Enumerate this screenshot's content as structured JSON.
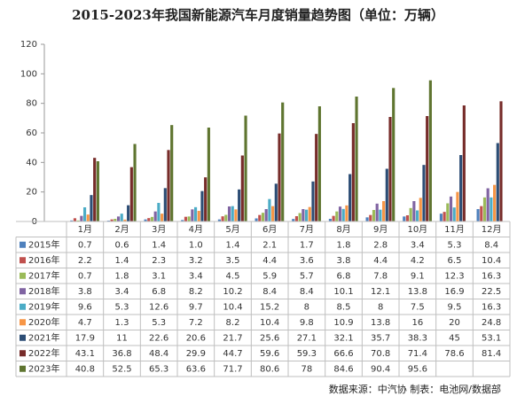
{
  "chart_data": {
    "type": "bar",
    "title": "2015-2023年我国新能源汽车月度销量趋势图（单位：万辆）",
    "source": "数据来源：中汽协  制表：电池网/数据部",
    "categories": [
      "1月",
      "2月",
      "3月",
      "4月",
      "5月",
      "6月",
      "7月",
      "8月",
      "9月",
      "10月",
      "11月",
      "12月"
    ],
    "ylim": [
      0,
      120
    ],
    "yticks": [
      0,
      20,
      40,
      60,
      80,
      100,
      120
    ],
    "series": [
      {
        "name": "2015年",
        "color": "#4f81bd",
        "values": [
          0.7,
          0.6,
          1.4,
          1.0,
          1.4,
          2.1,
          1.7,
          1.8,
          2.8,
          3.4,
          5.3,
          8.4
        ],
        "value_labels": [
          "0.7",
          "0.6",
          "1.4",
          "1.0",
          "1.4",
          "2.1",
          "1.7",
          "1.8",
          "2.8",
          "3.4",
          "5.3",
          "8.4"
        ]
      },
      {
        "name": "2016年",
        "color": "#c0504d",
        "values": [
          2.2,
          1.4,
          2.3,
          3.2,
          3.5,
          4.4,
          3.6,
          3.8,
          4.4,
          4.2,
          6.5,
          10.4
        ]
      },
      {
        "name": "2017年",
        "color": "#9bbb59",
        "values": [
          0.7,
          1.8,
          3.1,
          3.4,
          4.5,
          5.9,
          5.7,
          6.8,
          7.8,
          9.1,
          12.3,
          16.3
        ]
      },
      {
        "name": "2018年",
        "color": "#8064a2",
        "values": [
          3.8,
          3.4,
          6.8,
          8.2,
          10.2,
          8.4,
          8.4,
          10.1,
          12.1,
          13.8,
          16.9,
          22.5
        ]
      },
      {
        "name": "2019年",
        "color": "#4bacc6",
        "values": [
          9.6,
          5.3,
          12.6,
          9.7,
          10.4,
          15.2,
          8,
          8.5,
          8,
          7.5,
          9.5,
          16.3
        ]
      },
      {
        "name": "2020年",
        "color": "#f79646",
        "values": [
          4.7,
          1.3,
          5.3,
          7.2,
          8.2,
          10.4,
          9.8,
          10.9,
          13.8,
          16,
          20,
          24.8
        ]
      },
      {
        "name": "2021年",
        "color": "#2c4d75",
        "values": [
          17.9,
          11,
          22.6,
          20.6,
          21.7,
          25.6,
          27.1,
          32.1,
          35.7,
          38.3,
          45,
          53.1
        ]
      },
      {
        "name": "2022年",
        "color": "#772c2a",
        "values": [
          43.1,
          36.8,
          48.4,
          29.9,
          44.7,
          59.6,
          59.3,
          66.6,
          70.8,
          71.4,
          78.6,
          81.4
        ]
      },
      {
        "name": "2023年",
        "color": "#5f7530",
        "values": [
          40.8,
          52.5,
          65.3,
          63.6,
          71.7,
          80.6,
          78,
          84.6,
          90.4,
          95.6,
          null,
          null
        ]
      }
    ]
  }
}
